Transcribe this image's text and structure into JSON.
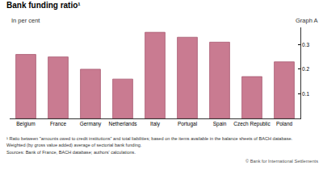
{
  "chart_data": {
    "type": "bar",
    "title": "Bank funding ratio¹",
    "subtitle": "In per cent",
    "label_right": "Graph A",
    "categories": [
      "Belgium",
      "France",
      "Germany",
      "Netherlands",
      "Italy",
      "Portugal",
      "Spain",
      "Czech Republic",
      "Poland"
    ],
    "values": [
      0.26,
      0.25,
      0.2,
      0.16,
      0.35,
      0.33,
      0.31,
      0.17,
      0.23
    ],
    "color": "#c97b91",
    "ylim": [
      0,
      0.37
    ],
    "yticks": [
      0.1,
      0.2,
      0.3
    ],
    "grid": false,
    "notes": [
      "¹ Ratio between \"amounts owed to credit institutions\" and total liabilities; based on the items available in the balance sheets of BACH database.",
      "Weighted (by gross value added) average of sectorial bank funding."
    ],
    "sources": "Sources: Bank of France, BACH database; authors' calculations.",
    "copyright": "© Bank for International Settlements"
  }
}
